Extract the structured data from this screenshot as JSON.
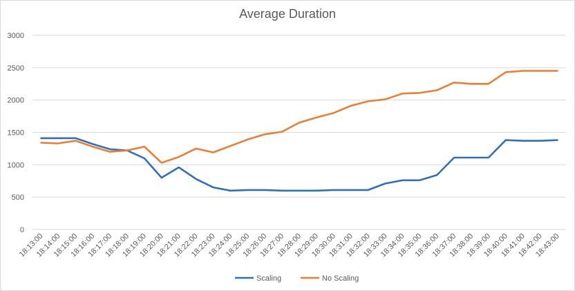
{
  "chart_data": {
    "type": "line",
    "title": "Average Duration",
    "xlabel": "",
    "ylabel": "",
    "ylim": [
      0,
      3000
    ],
    "yticks": [
      "0",
      "500",
      "1000",
      "1500",
      "2000",
      "2500",
      "3000"
    ],
    "grid": true,
    "legend_position": "bottom",
    "categories": [
      "18:13:00",
      "18:14:00",
      "18:15:00",
      "18:16:00",
      "18:17:00",
      "18:18:00",
      "18:19:00",
      "18:20:00",
      "18:21:00",
      "18:22:00",
      "18:23:00",
      "18:24:00",
      "18:25:00",
      "18:26:00",
      "18:27:00",
      "18:28:00",
      "18:29:00",
      "18:30:00",
      "18:31:00",
      "18:32:00",
      "18:33:00",
      "18:34:00",
      "18:35:00",
      "18:36:00",
      "18:37:00",
      "18:38:00",
      "18:39:00",
      "18:40:00",
      "18:41:00",
      "18:42:00",
      "18:43:00"
    ],
    "series": [
      {
        "name": "Scaling",
        "color": "#2e6fc0",
        "values": [
          1410,
          1410,
          1410,
          1320,
          1240,
          1220,
          1100,
          800,
          960,
          780,
          650,
          600,
          610,
          610,
          600,
          600,
          600,
          610,
          610,
          610,
          710,
          760,
          760,
          840,
          1110,
          1110,
          1110,
          1380,
          1370,
          1370,
          1380
        ]
      },
      {
        "name": "No Scaling",
        "color": "#ed7d31",
        "values": [
          1340,
          1330,
          1370,
          1280,
          1200,
          1220,
          1280,
          1030,
          1120,
          1250,
          1190,
          1290,
          1390,
          1470,
          1510,
          1650,
          1730,
          1800,
          1910,
          1980,
          2010,
          2100,
          2110,
          2150,
          2270,
          2250,
          2250,
          2430,
          2450,
          2450,
          2450
        ]
      }
    ]
  }
}
